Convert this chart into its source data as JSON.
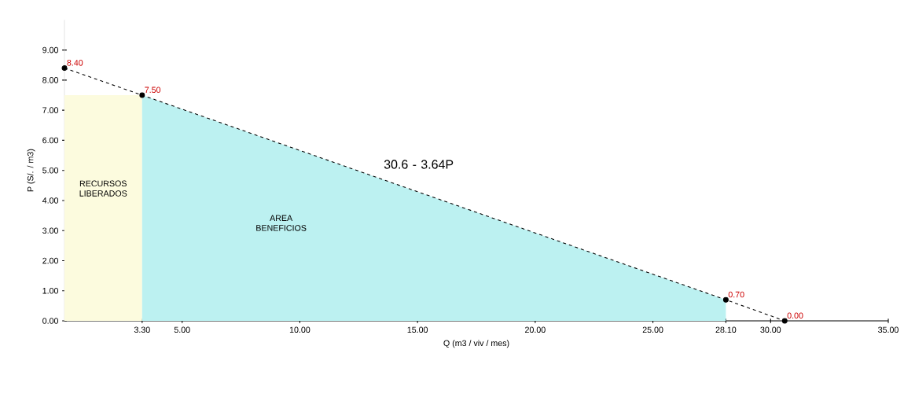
{
  "chart_data": {
    "type": "line",
    "xlabel": "Q (m3 / viv / mes)",
    "ylabel": "P (S/. / m3)",
    "xlim": [
      0,
      35
    ],
    "ylim": [
      0,
      10
    ],
    "xticks": [
      {
        "value": 3.3,
        "label": "3.30"
      },
      {
        "value": 5,
        "label": "5.00"
      },
      {
        "value": 10,
        "label": "10.00"
      },
      {
        "value": 15,
        "label": "15.00"
      },
      {
        "value": 20,
        "label": "20.00"
      },
      {
        "value": 25,
        "label": "25.00"
      },
      {
        "value": 28.1,
        "label": "28.10"
      },
      {
        "value": 30,
        "label": "30.00"
      },
      {
        "value": 35,
        "label": "35.00"
      }
    ],
    "yticks": [
      {
        "value": 0,
        "label": "0.00"
      },
      {
        "value": 1,
        "label": "1.00"
      },
      {
        "value": 2,
        "label": "2.00"
      },
      {
        "value": 3,
        "label": "3.00"
      },
      {
        "value": 4,
        "label": "4.00"
      },
      {
        "value": 5,
        "label": "5.00"
      },
      {
        "value": 6,
        "label": "6.00"
      },
      {
        "value": 7,
        "label": "7.00"
      },
      {
        "value": 8,
        "label": "8.00"
      },
      {
        "value": 9,
        "label": "9.00"
      }
    ],
    "grid": false,
    "series": [
      {
        "type": "area",
        "color": "#fcfbde",
        "x": [
          0,
          3.3
        ],
        "values": [
          7.5,
          7.5
        ]
      },
      {
        "type": "area",
        "color": "#bcf1f1",
        "x": [
          3.3,
          28.1
        ],
        "values": [
          7.5,
          0.7
        ]
      },
      {
        "color": "#000000",
        "marker": "circle",
        "line_style": "dashed",
        "x": [
          0,
          3.3,
          28.1,
          30.6
        ],
        "values": [
          8.4,
          7.5,
          0.7,
          0
        ],
        "value_labels": [
          "8.40",
          "7.50",
          "0.70",
          "0.00"
        ]
      }
    ],
    "annotations": [
      "30.6 - 3.64P",
      "RECURSOS LIBERADOS",
      "AREA BENEFICIOS"
    ]
  }
}
